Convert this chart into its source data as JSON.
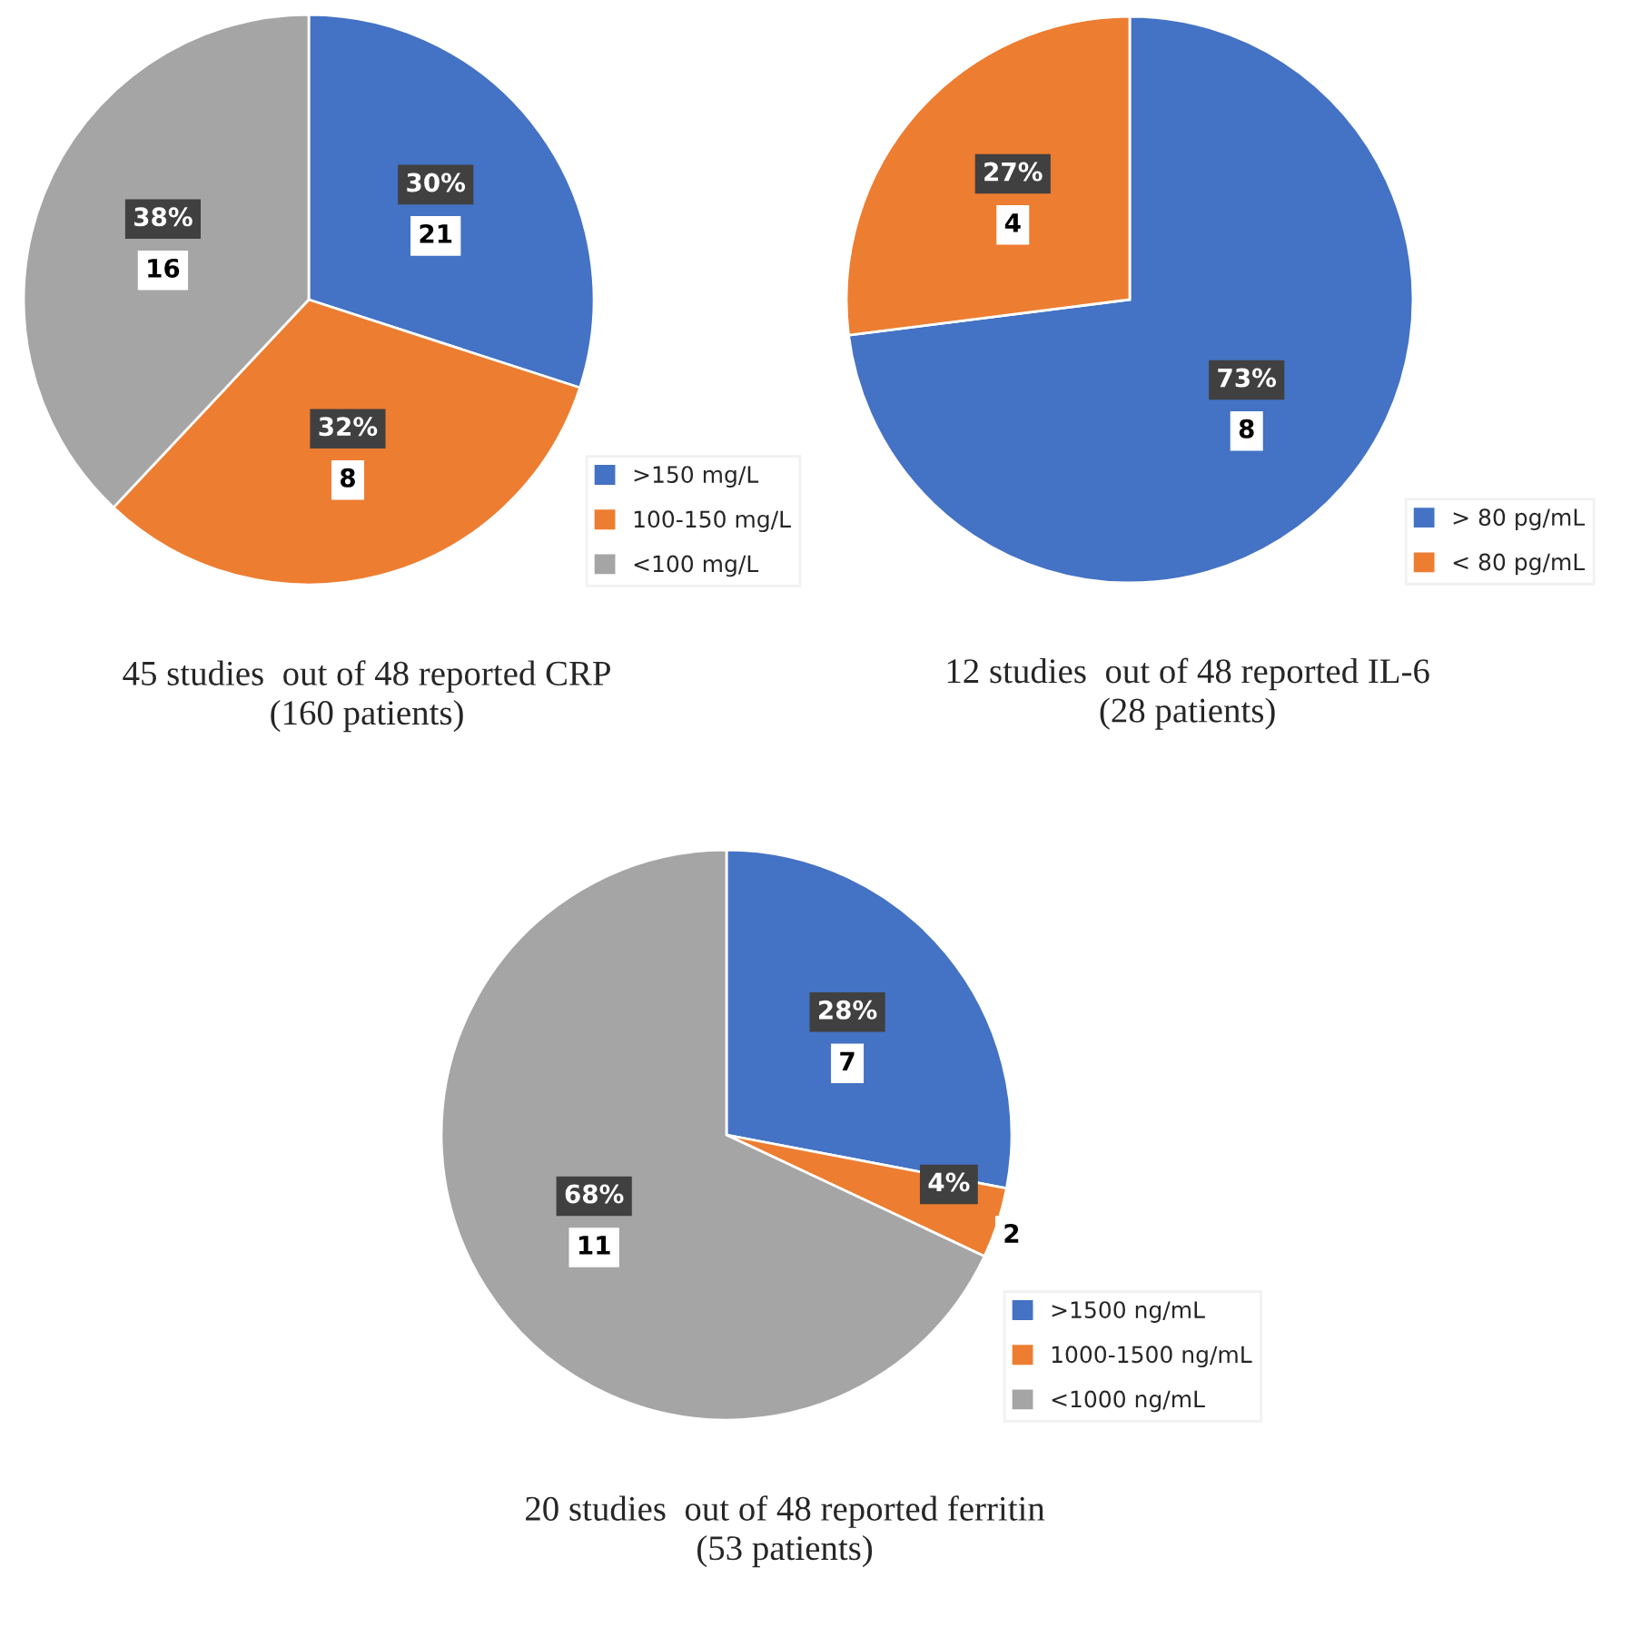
{
  "chart_data": [
    {
      "type": "pie",
      "title": "45 studies  out of 48 reported CRP\n(160 patients)",
      "categories": [
        ">150 mg/L",
        "100-150 mg/L",
        "<100 mg/L"
      ],
      "values": [
        30,
        32,
        38
      ],
      "colors": [
        "#4472c4",
        "#ed7d31",
        "#a5a5a5"
      ],
      "value_labels": [
        "30%",
        "32%",
        "38%"
      ],
      "annotations": [
        {
          "text": "21",
          "x": ">150 mg/L"
        },
        {
          "text": "8",
          "x": "100-150 mg/L"
        },
        {
          "text": "16",
          "x": "<100 mg/L"
        }
      ],
      "legend": "bottom right"
    },
    {
      "type": "pie",
      "title": "12 studies  out of 48 reported IL-6\n(28 patients)",
      "categories": [
        "> 80 pg/mL",
        "< 80 pg/mL"
      ],
      "values": [
        73,
        27
      ],
      "colors": [
        "#4472c4",
        "#ed7d31"
      ],
      "value_labels": [
        "73%",
        "27%"
      ],
      "annotations": [
        {
          "text": "8",
          "x": "> 80 pg/mL"
        },
        {
          "text": "4",
          "x": "< 80 pg/mL"
        }
      ],
      "legend": "bottom right"
    },
    {
      "type": "pie",
      "title": "20 studies  out of 48 reported ferritin\n(53 patients)",
      "categories": [
        ">1500 ng/mL",
        "1000-1500 ng/mL",
        "<1000 ng/mL"
      ],
      "values": [
        28,
        4,
        68
      ],
      "colors": [
        "#4472c4",
        "#ed7d31",
        "#a5a5a5"
      ],
      "value_labels": [
        "28%",
        "4%",
        "68%"
      ],
      "annotations": [
        {
          "text": "7",
          "x": ">1500 ng/mL"
        },
        {
          "text": "2",
          "x": "1000-1500 ng/mL"
        },
        {
          "text": "11",
          "x": "<1000 ng/mL"
        }
      ],
      "legend": "bottom right"
    }
  ]
}
